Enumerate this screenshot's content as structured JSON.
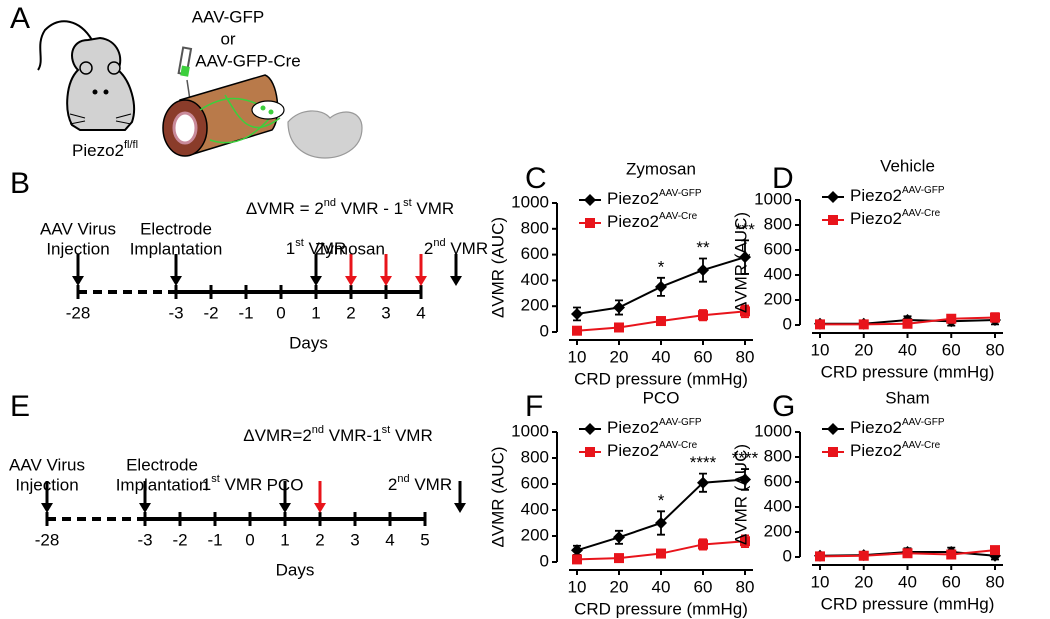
{
  "panel_labels": [
    "A",
    "B",
    "C",
    "D",
    "E",
    "F",
    "G"
  ],
  "schematic": {
    "vector_line1": "AAV-GFP",
    "vector_or": "or",
    "vector_line2": "AAV-GFP-Cre",
    "vector_line2_color": "#e8141b",
    "mouse_label": [
      "Piezo2",
      "fl/fl"
    ]
  },
  "timelines": [
    {
      "formula": [
        "ΔVMR = 2",
        "nd",
        " VMR - 1",
        "st",
        " VMR"
      ],
      "ticks": [
        -28,
        -3,
        -2,
        -1,
        0,
        1,
        2,
        3,
        4
      ],
      "xlabel": "Days",
      "events": [
        {
          "lines": [
            "AAV Virus",
            "Injection"
          ]
        },
        {
          "lines": [
            "Electrode",
            "Implantation"
          ]
        },
        {
          "rich": [
            "1",
            "st",
            " VMR"
          ]
        },
        {
          "lines": [
            "Zymosan"
          ],
          "color": "#e8141b"
        },
        {
          "rich": [
            "2",
            "nd",
            " VMR"
          ]
        }
      ]
    },
    {
      "formula": [
        "ΔVMR=2",
        "nd",
        " VMR-1",
        "st",
        " VMR"
      ],
      "ticks": [
        -28,
        -3,
        -2,
        -1,
        0,
        1,
        2,
        3,
        4,
        5
      ],
      "xlabel": "Days",
      "events": [
        {
          "lines": [
            "AAV Virus",
            "Injection"
          ]
        },
        {
          "lines": [
            "Electrode",
            "Implantation"
          ]
        },
        {
          "rich": [
            "1",
            "st",
            " VMR"
          ]
        },
        {
          "lines": [
            "PCO"
          ],
          "color": "#e8141b"
        },
        {
          "rich": [
            "2",
            "nd",
            " VMR"
          ]
        }
      ]
    }
  ],
  "chart_data": [
    {
      "type": "line",
      "title": "Zymosan",
      "xlabel": "CRD pressure (mmHg)",
      "ylabel": "ΔVMR (AUC)",
      "categories": [
        "10",
        "20",
        "40",
        "60",
        "80"
      ],
      "ylim": [
        0,
        1000
      ],
      "yticks": [
        0,
        200,
        400,
        600,
        800,
        1000
      ],
      "series": [
        {
          "name": [
            "Piezo2",
            "AAV-GFP"
          ],
          "color": "#000000",
          "marker": "diamond",
          "values": [
            140,
            190,
            350,
            480,
            580
          ],
          "errors": [
            50,
            55,
            70,
            90,
            130
          ]
        },
        {
          "name": [
            "Piezo2",
            "AAV-Cre"
          ],
          "color": "#e8141b",
          "marker": "square",
          "values": [
            10,
            35,
            85,
            130,
            160
          ],
          "errors": [
            15,
            10,
            25,
            40,
            45
          ]
        }
      ],
      "significance_labels": [
        null,
        null,
        "*",
        "**",
        "***"
      ]
    },
    {
      "type": "line",
      "title": "Vehicle",
      "xlabel": "CRD pressure (mmHg)",
      "ylabel": "ΔVMR (AUC)",
      "categories": [
        "10",
        "20",
        "40",
        "60",
        "80"
      ],
      "ylim": [
        0,
        1000
      ],
      "yticks": [
        0,
        200,
        400,
        600,
        800,
        1000
      ],
      "series": [
        {
          "name": [
            "Piezo2",
            "AAV-GFP"
          ],
          "color": "#000000",
          "marker": "diamond",
          "values": [
            10,
            10,
            40,
            30,
            40
          ],
          "errors": [
            10,
            10,
            30,
            35,
            35
          ]
        },
        {
          "name": [
            "Piezo2",
            "AAV-Cre"
          ],
          "color": "#e8141b",
          "marker": "square",
          "values": [
            5,
            5,
            10,
            50,
            60
          ],
          "errors": [
            5,
            5,
            10,
            30,
            35
          ]
        }
      ]
    },
    {
      "type": "line",
      "title": "PCO",
      "xlabel": "CRD pressure (mmHg)",
      "ylabel": "ΔVMR (AUC)",
      "categories": [
        "10",
        "20",
        "40",
        "60",
        "80"
      ],
      "ylim": [
        0,
        1000
      ],
      "yticks": [
        0,
        200,
        400,
        600,
        800,
        1000
      ],
      "series": [
        {
          "name": [
            "Piezo2",
            "AAV-GFP"
          ],
          "color": "#000000",
          "marker": "diamond",
          "values": [
            90,
            190,
            300,
            610,
            635
          ],
          "errors": [
            35,
            50,
            90,
            70,
            80
          ]
        },
        {
          "name": [
            "Piezo2",
            "AAV-Cre"
          ],
          "color": "#e8141b",
          "marker": "square",
          "values": [
            20,
            30,
            65,
            135,
            160
          ],
          "errors": [
            10,
            10,
            20,
            40,
            45
          ]
        }
      ],
      "significance_labels": [
        null,
        null,
        "*",
        "****",
        "****"
      ]
    },
    {
      "type": "line",
      "title": "Sham",
      "xlabel": "CRD pressure (mmHg)",
      "ylabel": "ΔVMR (AUC)",
      "categories": [
        "10",
        "20",
        "40",
        "60",
        "80"
      ],
      "ylim": [
        0,
        1000
      ],
      "yticks": [
        0,
        200,
        400,
        600,
        800,
        1000
      ],
      "series": [
        {
          "name": [
            "Piezo2",
            "AAV-GFP"
          ],
          "color": "#000000",
          "marker": "diamond",
          "values": [
            10,
            15,
            40,
            40,
            10
          ],
          "errors": [
            10,
            10,
            30,
            35,
            30
          ]
        },
        {
          "name": [
            "Piezo2",
            "AAV-Cre"
          ],
          "color": "#e8141b",
          "marker": "square",
          "values": [
            5,
            10,
            30,
            20,
            55
          ],
          "errors": [
            5,
            5,
            20,
            20,
            30
          ]
        }
      ]
    }
  ]
}
